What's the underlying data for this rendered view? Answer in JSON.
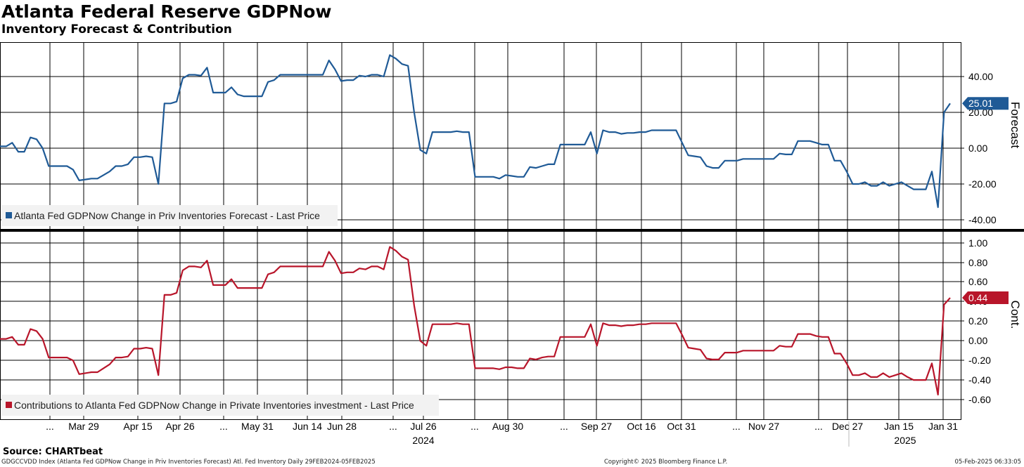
{
  "header": {
    "title": "Atlanta Federal Reserve GDPNow",
    "subtitle": "Inventory Forecast & Contribution"
  },
  "footer": {
    "source": "Source: CHARTbeat",
    "ticker": "GDGCCVDD Index (Atlanta Fed GDPNow Change in Priv Inventories Forecast) Atl. Fed Inventory  Daily 29FEB2024-05FEB2025",
    "copyright": "Copyright© 2025 Bloomberg Finance L.P.",
    "timestamp": "05-Feb-2025 06:33:05"
  },
  "chart_data": [
    {
      "type": "line",
      "panel": "top",
      "axis_title": "Forecast",
      "ylim": [
        -45,
        60
      ],
      "yticks": [
        "40.00",
        "20.00",
        "0.00",
        "-20.00",
        "-40.00"
      ],
      "last_value_label": "25.01",
      "grid": true,
      "legend": "bottom-left",
      "series": [
        {
          "name": "Atlanta Fed GDPNow Change in Priv Inventories Forecast - Last Price",
          "color": "#1f5a96",
          "values": [
            1,
            1,
            3,
            -2,
            -2,
            6,
            5,
            0,
            -10,
            -10,
            -10,
            -10,
            -12,
            -18,
            -17.5,
            -17,
            -17,
            -15,
            -13,
            -10,
            -10,
            -9,
            -5,
            -5,
            -4.5,
            -5,
            -20,
            25,
            25,
            26,
            39,
            41,
            41,
            40.5,
            45,
            31,
            31,
            31,
            34,
            30,
            29,
            29,
            29,
            29,
            37,
            38,
            41,
            41,
            41,
            41,
            41,
            41,
            41,
            41,
            49,
            44,
            37.5,
            38,
            38,
            40.5,
            40,
            41,
            41,
            40,
            52,
            50,
            47,
            46,
            20,
            -1,
            -3,
            9,
            9,
            9,
            9,
            9.5,
            9,
            9,
            -16,
            -16,
            -16,
            -16,
            -17,
            -15,
            -15.5,
            -16,
            -16,
            -10.5,
            -11,
            -10,
            -9,
            -9,
            2,
            2,
            2,
            2,
            2,
            9,
            -3,
            10,
            9,
            9,
            8,
            8.5,
            8.5,
            9,
            9,
            10,
            10,
            10,
            10,
            10,
            3,
            -4,
            -4.5,
            -5,
            -10,
            -11,
            -11,
            -7,
            -7,
            -7,
            -6,
            -6,
            -6,
            -6,
            -6,
            -6,
            -3,
            -3.5,
            -3.5,
            4,
            4,
            4,
            3,
            2,
            2,
            -7,
            -7,
            -13,
            -20,
            -20,
            -19,
            -21,
            -21,
            -19,
            -21,
            -20,
            -19,
            -21,
            -23,
            -23,
            -23,
            -13,
            -33,
            20,
            25.01
          ]
        }
      ]
    },
    {
      "type": "line",
      "panel": "bottom",
      "axis_title": "Cont.",
      "ylim": [
        -0.75,
        1.13
      ],
      "yticks": [
        "1.00",
        "0.80",
        "0.60",
        "0.40",
        "0.20",
        "0.00",
        "-0.20",
        "-0.40",
        "-0.60"
      ],
      "last_value_label": "0.44",
      "grid": true,
      "legend": "bottom-left",
      "series": [
        {
          "name": "Contributions to Atlanta Fed GDPNow Change in Private Inventories investment - Last Price",
          "color": "#b8152a",
          "values": [
            0.02,
            0.02,
            0.04,
            -0.04,
            -0.04,
            0.12,
            0.1,
            0.02,
            -0.17,
            -0.17,
            -0.17,
            -0.17,
            -0.2,
            -0.34,
            -0.33,
            -0.32,
            -0.32,
            -0.28,
            -0.24,
            -0.17,
            -0.17,
            -0.16,
            -0.08,
            -0.08,
            -0.07,
            -0.08,
            -0.35,
            0.47,
            0.47,
            0.49,
            0.72,
            0.76,
            0.76,
            0.75,
            0.82,
            0.57,
            0.57,
            0.57,
            0.63,
            0.54,
            0.54,
            0.54,
            0.54,
            0.54,
            0.68,
            0.7,
            0.76,
            0.76,
            0.76,
            0.76,
            0.76,
            0.76,
            0.76,
            0.76,
            0.91,
            0.82,
            0.69,
            0.7,
            0.7,
            0.74,
            0.73,
            0.76,
            0.76,
            0.73,
            0.96,
            0.92,
            0.86,
            0.83,
            0.36,
            0.0,
            -0.05,
            0.17,
            0.17,
            0.17,
            0.17,
            0.18,
            0.17,
            0.17,
            -0.28,
            -0.28,
            -0.28,
            -0.28,
            -0.29,
            -0.27,
            -0.27,
            -0.28,
            -0.28,
            -0.18,
            -0.19,
            -0.17,
            -0.16,
            -0.16,
            0.04,
            0.04,
            0.04,
            0.04,
            0.04,
            0.17,
            -0.05,
            0.18,
            0.16,
            0.16,
            0.15,
            0.16,
            0.16,
            0.17,
            0.17,
            0.18,
            0.18,
            0.18,
            0.18,
            0.18,
            0.06,
            -0.07,
            -0.08,
            -0.09,
            -0.18,
            -0.19,
            -0.19,
            -0.12,
            -0.12,
            -0.12,
            -0.1,
            -0.1,
            -0.1,
            -0.1,
            -0.1,
            -0.1,
            -0.05,
            -0.06,
            -0.06,
            0.07,
            0.07,
            0.07,
            0.05,
            0.04,
            0.04,
            -0.13,
            -0.13,
            -0.23,
            -0.35,
            -0.35,
            -0.33,
            -0.37,
            -0.37,
            -0.33,
            -0.37,
            -0.35,
            -0.33,
            -0.37,
            -0.4,
            -0.4,
            -0.4,
            -0.23,
            -0.55,
            0.37,
            0.44
          ]
        }
      ]
    }
  ],
  "x_axis": {
    "labels": [
      "...",
      "Mar 29",
      "Apr 15",
      "Apr 26",
      "...",
      "May 31",
      "Jun 14",
      "Jun 28",
      "...",
      "Jul 26",
      "...",
      "Aug 30",
      "...",
      "Sep 27",
      "Oct 16",
      "Oct 31",
      "...",
      "Nov 27",
      "...",
      "Dec 27",
      "Jan 15",
      "Jan 31"
    ],
    "years": [
      "2024",
      "2025"
    ]
  }
}
